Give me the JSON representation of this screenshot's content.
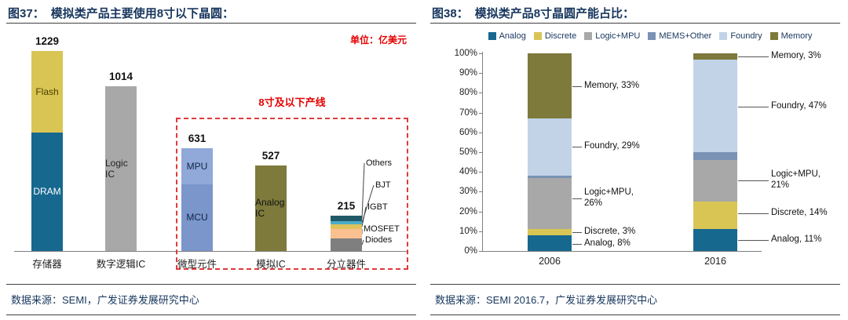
{
  "panels": {
    "left": {
      "fig_label": "图37：",
      "title": "模拟类产品主要使用8寸以下晶圆：",
      "unit_label": "单位：亿美元",
      "highlight_label": "8寸及以下产线",
      "source": "数据来源：SEMI，广发证券发展研究中心"
    },
    "right": {
      "fig_label": "图38：",
      "title": "模拟类产品8寸晶圆产能占比：",
      "source": "数据来源：SEMI 2016.7，广发证券发展研究中心"
    }
  },
  "chart_data": [
    {
      "type": "bar",
      "title": "模拟类产品主要使用8寸以下晶圆",
      "unit": "亿美元",
      "ylim": [
        0,
        1300
      ],
      "categories": [
        "存储器",
        "数字逻辑IC",
        "微型元件",
        "模拟IC",
        "分立器件"
      ],
      "bars": [
        {
          "category": "存储器",
          "total": 1229,
          "segments": [
            {
              "name": "DRAM",
              "value": 729,
              "color": "#17688F",
              "label_color": "#FFFFFF",
              "show_label": true
            },
            {
              "name": "Flash",
              "value": 500,
              "color": "#D9C554",
              "label_color": "#4A4000",
              "show_label": true
            }
          ]
        },
        {
          "category": "数字逻辑IC",
          "total": 1014,
          "segments": [
            {
              "name": "Logic IC",
              "value": 1014,
              "color": "#A8A8A8",
              "label_color": "#222222",
              "show_label": true
            }
          ]
        },
        {
          "category": "微型元件",
          "total": 631,
          "segments": [
            {
              "name": "MCU",
              "value": 411,
              "color": "#7B96CB",
              "label_color": "#0F2447",
              "show_label": true
            },
            {
              "name": "MPU",
              "value": 220,
              "color": "#90A9D8",
              "label_color": "#0F2447",
              "show_label": true
            }
          ]
        },
        {
          "category": "模拟IC",
          "total": 527,
          "segments": [
            {
              "name": "Analog IC",
              "value": 527,
              "color": "#7D7A3B",
              "label_color": "#111111",
              "show_label": true
            }
          ]
        },
        {
          "category": "分立器件",
          "total": 215,
          "segments": [
            {
              "name": "Diodes",
              "value": 75,
              "color": "#7F7F7F",
              "show_label": false
            },
            {
              "name": "MOSFET",
              "value": 60,
              "color": "#FAC090",
              "show_label": false
            },
            {
              "name": "IGBT",
              "value": 28,
              "color": "#E0C25C",
              "show_label": false
            },
            {
              "name": "BJT",
              "value": 22,
              "color": "#4BACC6",
              "show_label": false
            },
            {
              "name": "Others",
              "value": 30,
              "color": "#215968",
              "show_label": false
            }
          ]
        }
      ],
      "highlight_box_label": "8寸及以下产线",
      "callout_labels": [
        "Others",
        "BJT",
        "IGBT",
        "MOSFET",
        "Diodes"
      ]
    },
    {
      "type": "stacked-bar-100",
      "title": "模拟类产品8寸晶圆产能占比",
      "categories": [
        "2006",
        "2016"
      ],
      "legend": [
        "Analog",
        "Discrete",
        "Logic+MPU",
        "MEMS+Other",
        "Foundry",
        "Memory"
      ],
      "colors": {
        "Analog": "#17688F",
        "Discrete": "#D9C554",
        "Logic+MPU": "#A8A8A8",
        "MEMS+Other": "#7A93B5",
        "Foundry": "#C2D3E8",
        "Memory": "#7D7A3B"
      },
      "series": [
        {
          "name": "Analog",
          "values": [
            8,
            11
          ]
        },
        {
          "name": "Discrete",
          "values": [
            3,
            14
          ]
        },
        {
          "name": "Logic+MPU",
          "values": [
            26,
            21
          ]
        },
        {
          "name": "MEMS+Other",
          "values": [
            1,
            4
          ]
        },
        {
          "name": "Foundry",
          "values": [
            29,
            47
          ]
        },
        {
          "name": "Memory",
          "values": [
            33,
            3
          ]
        }
      ],
      "y_axis_labels": [
        "0%",
        "10%",
        "20%",
        "30%",
        "40%",
        "50%",
        "60%",
        "70%",
        "80%",
        "90%",
        "100%"
      ],
      "annotations": {
        "2006": [
          "Memory, 33%",
          "Foundry, 29%",
          "Logic+MPU, 26%",
          "Discrete, 3%",
          "Analog, 8%"
        ],
        "2016": [
          "Memory, 3%",
          "Foundry, 47%",
          "Logic+MPU, 21%",
          "Discrete, 14%",
          "Analog, 11%"
        ]
      }
    }
  ]
}
